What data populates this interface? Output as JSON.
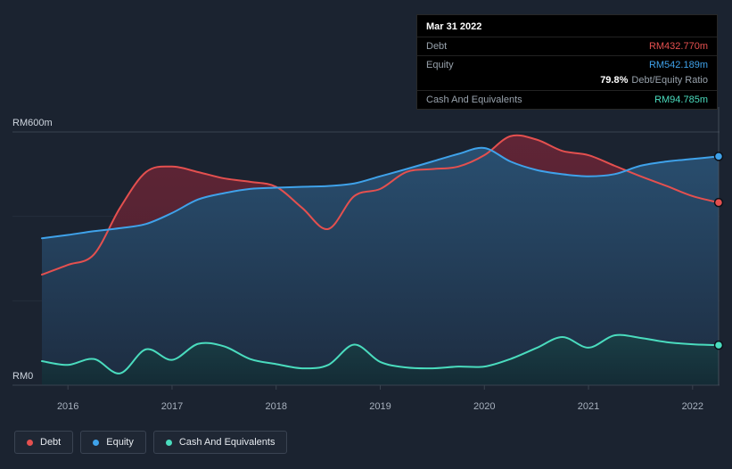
{
  "colors": {
    "debt": "#e4504f",
    "equity": "#3fa2ea",
    "cash": "#4adcbe",
    "background": "#1b2330",
    "tooltip_background": "#000000"
  },
  "tooltip": {
    "date": "Mar 31 2022",
    "debt_label": "Debt",
    "debt_value": "RM432.770m",
    "equity_label": "Equity",
    "equity_value": "RM542.189m",
    "ratio_value": "79.8%",
    "ratio_label": "Debt/Equity Ratio",
    "cash_label": "Cash And Equivalents",
    "cash_value": "RM94.785m"
  },
  "legend": {
    "items": [
      {
        "label": "Debt",
        "color": "#e4504f"
      },
      {
        "label": "Equity",
        "color": "#3fa2ea"
      },
      {
        "label": "Cash And Equivalents",
        "color": "#4adcbe"
      }
    ]
  },
  "chart_data": {
    "type": "area",
    "x": [
      2015.75,
      2016,
      2016.25,
      2016.5,
      2016.75,
      2017,
      2017.25,
      2017.5,
      2017.75,
      2018,
      2018.25,
      2018.5,
      2018.75,
      2019,
      2019.25,
      2019.5,
      2019.75,
      2020,
      2020.25,
      2020.5,
      2020.75,
      2021,
      2021.25,
      2021.5,
      2021.75,
      2022,
      2022.25
    ],
    "series": [
      {
        "name": "Debt",
        "color": "#e4504f",
        "values": [
          262,
          285,
          310,
          420,
          505,
          518,
          505,
          490,
          482,
          470,
          420,
          370,
          448,
          465,
          505,
          512,
          518,
          545,
          590,
          582,
          555,
          545,
          520,
          495,
          472,
          448,
          432.77
        ]
      },
      {
        "name": "Equity",
        "color": "#3fa2ea",
        "values": [
          348,
          356,
          365,
          372,
          382,
          408,
          440,
          455,
          465,
          468,
          470,
          472,
          478,
          495,
          512,
          530,
          548,
          562,
          530,
          510,
          500,
          495,
          500,
          520,
          530,
          536,
          542.189
        ]
      },
      {
        "name": "Cash And Equivalents",
        "color": "#4adcbe",
        "values": [
          57,
          48,
          62,
          28,
          85,
          60,
          98,
          92,
          62,
          50,
          40,
          48,
          96,
          55,
          42,
          40,
          44,
          44,
          62,
          88,
          114,
          89,
          118,
          112,
          102,
          97,
          94.785
        ]
      }
    ],
    "ylim": [
      0,
      600
    ],
    "y_ticks": [
      {
        "value": 600,
        "label": "RM600m"
      },
      {
        "value": 0,
        "label": "RM0"
      }
    ],
    "y_gridlines": [
      600,
      400,
      200,
      0
    ],
    "x_ticks": [
      {
        "value": 2016,
        "label": "2016"
      },
      {
        "value": 2017,
        "label": "2017"
      },
      {
        "value": 2018,
        "label": "2018"
      },
      {
        "value": 2019,
        "label": "2019"
      },
      {
        "value": 2020,
        "label": "2020"
      },
      {
        "value": 2021,
        "label": "2021"
      },
      {
        "value": 2022,
        "label": "2022"
      }
    ],
    "grid": "horizontal",
    "legend_position": "bottom-left"
  }
}
